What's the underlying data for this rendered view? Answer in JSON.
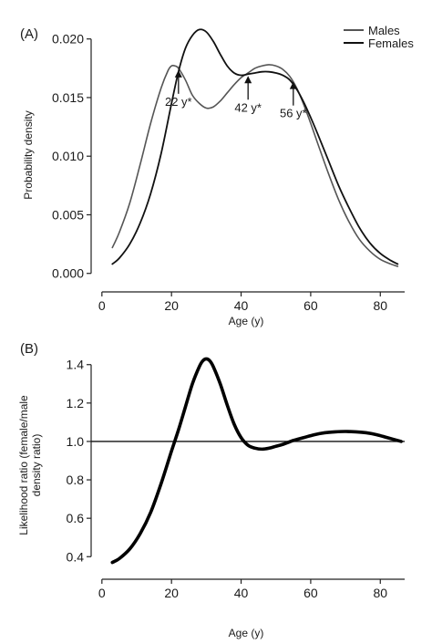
{
  "chart_data": [
    {
      "panel_label": "(A)",
      "type": "line",
      "xlabel": "Age (y)",
      "ylabel": "Probability density",
      "xlim": [
        -1,
        87
      ],
      "ylim": [
        -0.0008,
        0.0213
      ],
      "xticks": [
        0,
        20,
        40,
        60,
        80
      ],
      "xtick_labels": [
        "0",
        "20",
        "40",
        "60",
        "80"
      ],
      "yticks": [
        0.0,
        0.005,
        0.01,
        0.015,
        0.02
      ],
      "ytick_labels": [
        "0.000",
        "0.005",
        "0.010",
        "0.015",
        "0.020"
      ],
      "grid": false,
      "legend_position": "top-right",
      "series": [
        {
          "name": "Males",
          "color": "#555555",
          "x": [
            3,
            5,
            8,
            11,
            14,
            17,
            19,
            20,
            21,
            22,
            24,
            26,
            28,
            30,
            32,
            34,
            36,
            38,
            40,
            42,
            44,
            46,
            48,
            50,
            52,
            54,
            56,
            58,
            60,
            62,
            65,
            68,
            71,
            74,
            77,
            80,
            83,
            85
          ],
          "y": [
            0.0022,
            0.0035,
            0.006,
            0.0093,
            0.0128,
            0.0158,
            0.0173,
            0.0177,
            0.0177,
            0.0175,
            0.0165,
            0.0152,
            0.0145,
            0.0141,
            0.0142,
            0.0147,
            0.0154,
            0.0161,
            0.0167,
            0.0171,
            0.0175,
            0.0177,
            0.0178,
            0.0177,
            0.0174,
            0.0168,
            0.0158,
            0.0144,
            0.0128,
            0.0111,
            0.0086,
            0.0063,
            0.0044,
            0.0029,
            0.0019,
            0.0012,
            0.0008,
            0.0006
          ]
        },
        {
          "name": "Females",
          "color": "#111111",
          "x": [
            3,
            5,
            8,
            11,
            14,
            17,
            20,
            22,
            24,
            26,
            28,
            30,
            32,
            34,
            36,
            38,
            40,
            42,
            44,
            46,
            48,
            50,
            52,
            54,
            56,
            58,
            60,
            62,
            65,
            68,
            71,
            74,
            77,
            80,
            83,
            85
          ],
          "y": [
            0.0008,
            0.0013,
            0.0025,
            0.0043,
            0.0068,
            0.0102,
            0.0145,
            0.0172,
            0.0192,
            0.0203,
            0.0208,
            0.0206,
            0.0198,
            0.0187,
            0.0177,
            0.0171,
            0.0169,
            0.017,
            0.0171,
            0.0172,
            0.0172,
            0.0171,
            0.0169,
            0.0165,
            0.0157,
            0.0146,
            0.0133,
            0.0119,
            0.0097,
            0.0075,
            0.0056,
            0.0039,
            0.0026,
            0.0017,
            0.0011,
            0.0008
          ]
        }
      ],
      "annotations": [
        {
          "text": "22 y*",
          "x": 22,
          "y": 0.0175
        },
        {
          "text": "42 y*",
          "x": 42,
          "y": 0.017
        },
        {
          "text": "56 y*",
          "x": 55,
          "y": 0.0165
        }
      ]
    },
    {
      "panel_label": "(B)",
      "type": "line",
      "xlabel": "Age (y)",
      "ylabel": "Likelihood ratio (female/male density ratio)",
      "ylabel_lines": [
        "Likelihood ratio (female/male",
        "density ratio)"
      ],
      "xlim": [
        -1,
        87
      ],
      "ylim": [
        0.33,
        1.47
      ],
      "xticks": [
        0,
        20,
        40,
        60,
        80
      ],
      "xtick_labels": [
        "0",
        "20",
        "40",
        "60",
        "80"
      ],
      "yticks": [
        0.4,
        0.6,
        0.8,
        1.0,
        1.2,
        1.4
      ],
      "ytick_labels": [
        "0.4",
        "0.6",
        "0.8",
        "1.0",
        "1.2",
        "1.4"
      ],
      "grid": false,
      "reference_line": 1.0,
      "series": [
        {
          "name": "",
          "color": "#000000",
          "x": [
            3,
            5,
            8,
            11,
            14,
            17,
            20,
            22,
            24,
            26,
            28,
            29,
            30,
            31,
            32,
            34,
            36,
            38,
            40,
            42,
            44,
            46,
            48,
            50,
            52,
            55,
            58,
            61,
            64,
            67,
            70,
            73,
            76,
            79,
            82,
            86
          ],
          "y": [
            0.37,
            0.39,
            0.44,
            0.52,
            0.63,
            0.78,
            0.95,
            1.06,
            1.18,
            1.3,
            1.39,
            1.42,
            1.43,
            1.42,
            1.39,
            1.3,
            1.19,
            1.09,
            1.02,
            0.98,
            0.965,
            0.96,
            0.965,
            0.975,
            0.985,
            1.005,
            1.02,
            1.035,
            1.045,
            1.05,
            1.052,
            1.05,
            1.045,
            1.035,
            1.02,
            1.0
          ]
        }
      ]
    }
  ]
}
